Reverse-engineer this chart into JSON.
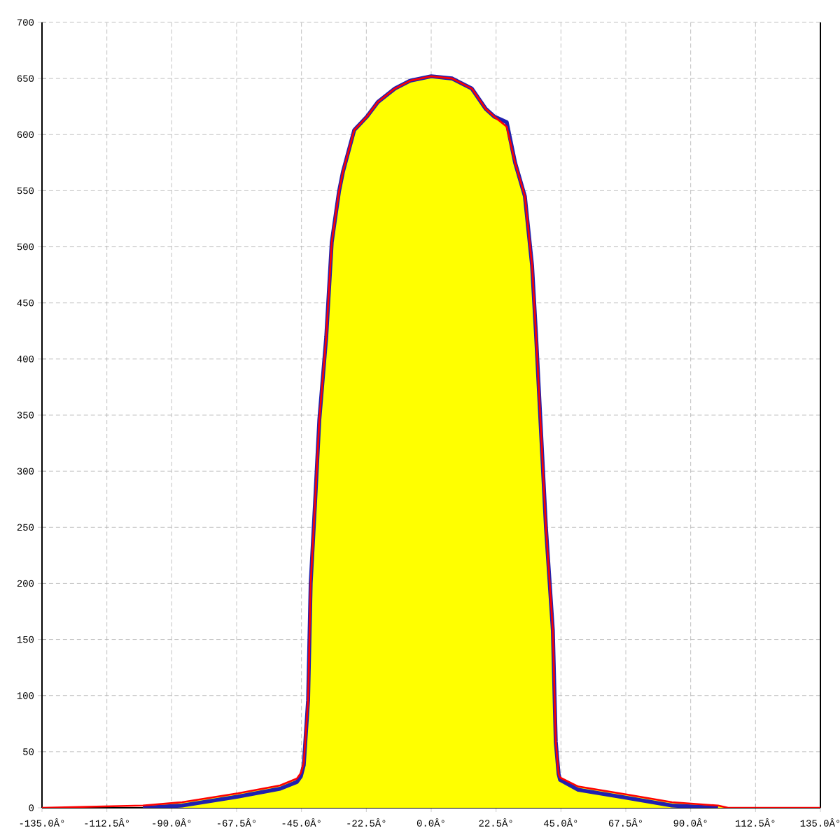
{
  "chart_data": {
    "type": "line",
    "grid": true,
    "xlim": [
      -135,
      135
    ],
    "ylim": [
      0,
      700
    ],
    "xticks": [
      {
        "value": -135,
        "label": "-135.0Â°"
      },
      {
        "value": -112.5,
        "label": "-112.5Â°"
      },
      {
        "value": -90,
        "label": "-90.0Â°"
      },
      {
        "value": -67.5,
        "label": "-67.5Â°"
      },
      {
        "value": -45,
        "label": "-45.0Â°"
      },
      {
        "value": -22.5,
        "label": "-22.5Â°"
      },
      {
        "value": 0,
        "label": "0.0Â°"
      },
      {
        "value": 22.5,
        "label": "22.5Â°"
      },
      {
        "value": 45,
        "label": "45.0Â°"
      },
      {
        "value": 67.5,
        "label": "67.5Â°"
      },
      {
        "value": 90,
        "label": "90.0Â°"
      },
      {
        "value": 112.5,
        "label": "112.5Â°"
      },
      {
        "value": 135,
        "label": "135.0Â°"
      }
    ],
    "yticks": [
      0,
      50,
      100,
      150,
      200,
      250,
      300,
      350,
      400,
      450,
      500,
      550,
      600,
      650,
      700
    ],
    "series": [
      {
        "type": "area",
        "color": "#ffff00",
        "x": [
          -100,
          -86.4,
          -67,
          -52.4,
          -46.6,
          -45.2,
          -44.2,
          -42.7,
          -41.8,
          -40.3,
          -38.8,
          -36.4,
          -34.5,
          -32,
          -30.6,
          -26.7,
          -22.3,
          -18.5,
          -12.6,
          -7.3,
          0,
          7.3,
          14.1,
          18.9,
          21.9,
          26.2,
          29.1,
          32.5,
          35,
          36.4,
          39.8,
          42.2,
          43.2,
          44.2,
          44.7,
          51,
          67.5,
          83.5,
          99.5,
          103
        ],
        "values": [
          2,
          5,
          13,
          20,
          26,
          31,
          40,
          96,
          200,
          271,
          346,
          420,
          504,
          549,
          567,
          604,
          616,
          629,
          641,
          648,
          652,
          650,
          641,
          623,
          616,
          607,
          575,
          545,
          483,
          420,
          250,
          158,
          59,
          30,
          27,
          19,
          12,
          5,
          2,
          0
        ]
      },
      {
        "color": "#2020b0",
        "x": [
          -100,
          -86.4,
          -67,
          -52.4,
          -46.6,
          -45.2,
          -44.2,
          -42.7,
          -41.8,
          -40.3,
          -38.8,
          -36.4,
          -34.5,
          -32,
          -30.6,
          -26.7,
          -22.3,
          -18.5,
          -12.6,
          -7.3,
          0,
          7.3,
          14.1,
          18.9,
          21.9,
          26.2,
          29.1,
          32.5,
          35,
          36.4,
          39.8,
          42.2,
          43.2,
          44.2,
          44.7,
          51,
          67.5,
          83.5,
          99.5
        ],
        "values": [
          0,
          2,
          10,
          17,
          23,
          28,
          38,
          96,
          200,
          271,
          346,
          420,
          504,
          549,
          567,
          604,
          616,
          629,
          641,
          648,
          652,
          650,
          641,
          623,
          616,
          611,
          575,
          545,
          483,
          420,
          250,
          158,
          59,
          30,
          25,
          16,
          9,
          2,
          0
        ]
      },
      {
        "color": "#ff0000",
        "x": [
          -135,
          -100,
          -86.4,
          -67,
          -52.4,
          -46.6,
          -45.2,
          -44.2,
          -42.7,
          -41.8,
          -40.3,
          -38.8,
          -36.4,
          -34.5,
          -32,
          -30.6,
          -26.7,
          -22.3,
          -18.5,
          -12.6,
          -7.3,
          0,
          7.3,
          14.1,
          18.9,
          21.9,
          26.2,
          29.1,
          32.5,
          35,
          36.4,
          39.8,
          42.2,
          43.2,
          44.2,
          44.7,
          51,
          67.5,
          83.5,
          99.5,
          103,
          135
        ],
        "values": [
          0,
          2,
          5,
          13,
          20,
          26,
          31,
          40,
          96,
          200,
          271,
          346,
          420,
          504,
          549,
          567,
          604,
          616,
          629,
          641,
          648,
          652,
          650,
          641,
          623,
          616,
          607,
          575,
          545,
          483,
          420,
          250,
          158,
          59,
          30,
          27,
          19,
          12,
          5,
          2,
          0,
          0
        ]
      }
    ]
  }
}
